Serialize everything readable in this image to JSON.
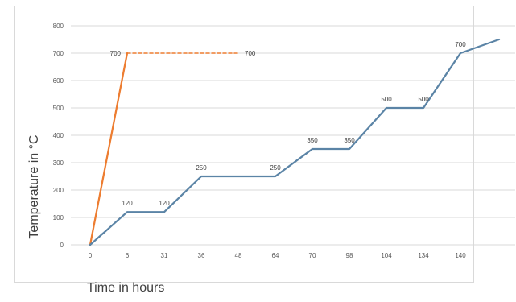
{
  "chart_data": {
    "type": "line",
    "xlabel": "Time in hours",
    "ylabel": "Temperature in °C",
    "ylim": [
      0,
      800
    ],
    "yticks": [
      0,
      100,
      200,
      300,
      400,
      500,
      600,
      700,
      800
    ],
    "categories": [
      "0",
      "6",
      "31",
      "36",
      "48",
      "64",
      "70",
      "98",
      "104",
      "134",
      "140"
    ],
    "grid": "horizontal",
    "legend": "none",
    "series": [
      {
        "color": "#ED7D31",
        "points": [
          {
            "x": "0",
            "y": 0
          },
          {
            "x": "6",
            "y": 700,
            "label": "700"
          }
        ]
      },
      {
        "color": "#ED7D31",
        "style": "dashed",
        "points": [
          {
            "x": "6",
            "y": 700
          },
          {
            "x": "48",
            "y": 700,
            "label": "700"
          }
        ]
      },
      {
        "color": "#5B84A6",
        "points": [
          {
            "x": "0",
            "y": 0
          },
          {
            "x": "6",
            "y": 120,
            "label": "120"
          },
          {
            "x": "31",
            "y": 120,
            "label": "120"
          },
          {
            "x": "36",
            "y": 250,
            "label": "250"
          },
          {
            "x": "64",
            "y": 250,
            "label": "250"
          },
          {
            "x": "70",
            "y": 350,
            "label": "350"
          },
          {
            "x": "98",
            "y": 350,
            "label": "350"
          },
          {
            "x": "104",
            "y": 500,
            "label": "500"
          },
          {
            "x": "134",
            "y": 500,
            "label": "500"
          },
          {
            "x": "140",
            "y": 700,
            "label": "700"
          },
          {
            "x": "",
            "y": 750
          }
        ]
      }
    ]
  }
}
